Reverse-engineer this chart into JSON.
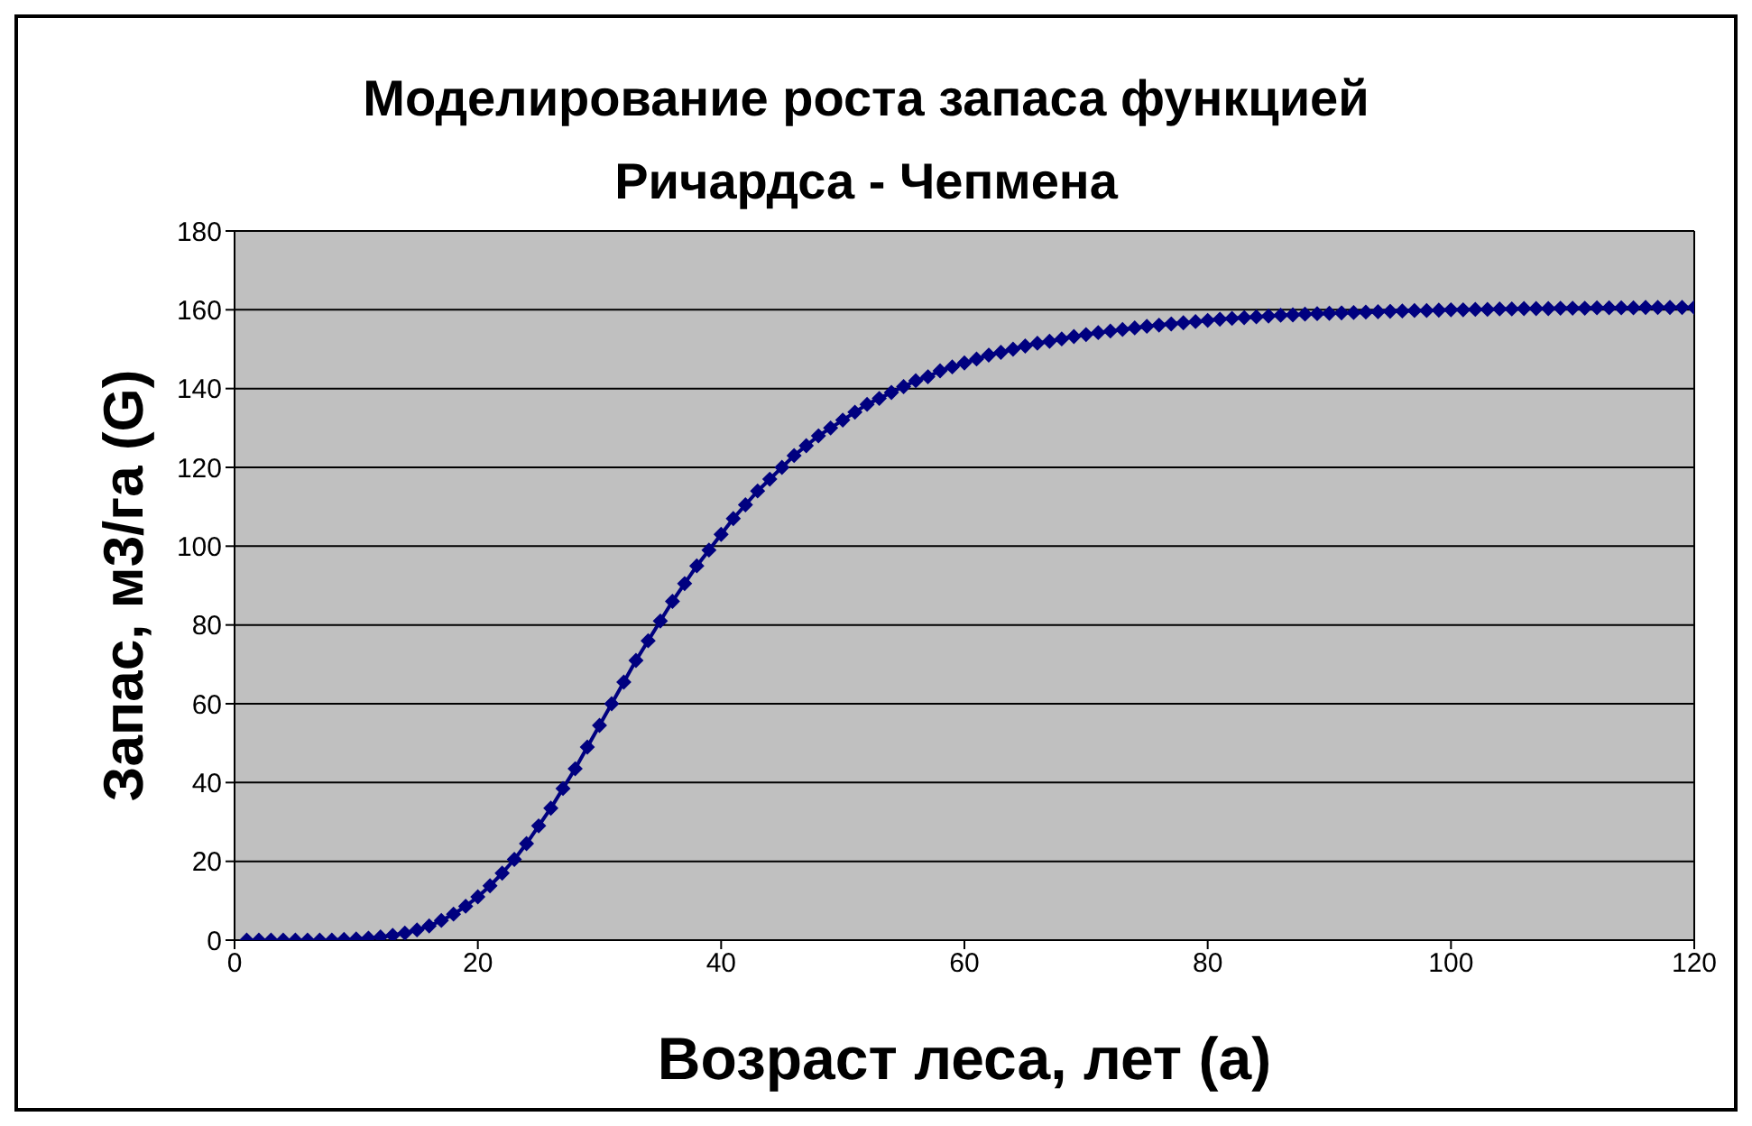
{
  "chart_data": {
    "type": "line",
    "title": "Моделирование роста запаса функцией Ричардса - Чепмена",
    "xlabel": "Возраст леса, лет (a)",
    "ylabel": "Запас,  м3/га (G)",
    "x": [
      1,
      2,
      3,
      4,
      5,
      6,
      7,
      8,
      9,
      10,
      11,
      12,
      13,
      14,
      15,
      16,
      17,
      18,
      19,
      20,
      21,
      22,
      23,
      24,
      25,
      26,
      27,
      28,
      29,
      30,
      31,
      32,
      33,
      34,
      35,
      36,
      37,
      38,
      39,
      40,
      41,
      42,
      43,
      44,
      45,
      46,
      47,
      48,
      49,
      50,
      51,
      52,
      53,
      54,
      55,
      56,
      57,
      58,
      59,
      60,
      61,
      62,
      63,
      64,
      65,
      66,
      67,
      68,
      69,
      70,
      71,
      72,
      73,
      74,
      75,
      76,
      77,
      78,
      79,
      80,
      81,
      82,
      83,
      84,
      85,
      86,
      87,
      88,
      89,
      90,
      91,
      92,
      93,
      94,
      95,
      96,
      97,
      98,
      99,
      100,
      101,
      102,
      103,
      104,
      105,
      106,
      107,
      108,
      109,
      110,
      111,
      112,
      113,
      114,
      115,
      116,
      117,
      118,
      119,
      120
    ],
    "series": [
      {
        "color": "#000080",
        "values": [
          0,
          0,
          0,
          0,
          0,
          0,
          0,
          0,
          0.2,
          0.3,
          0.5,
          0.8,
          1.2,
          1.8,
          2.6,
          3.6,
          5,
          6.6,
          8.6,
          11,
          13.8,
          17,
          20.5,
          24.5,
          29,
          33.5,
          38.5,
          43.5,
          49,
          54.5,
          60,
          65.5,
          71,
          76,
          81,
          86,
          90.5,
          95,
          99,
          103,
          107,
          110.5,
          114,
          117,
          120,
          123,
          125.5,
          128,
          130,
          132,
          134,
          136,
          137.5,
          139,
          140.5,
          142,
          143,
          144.5,
          145.5,
          146.5,
          147.5,
          148.5,
          149.2,
          150,
          150.8,
          151.5,
          152,
          152.6,
          153.2,
          153.7,
          154.2,
          154.6,
          155,
          155.4,
          155.8,
          156.1,
          156.4,
          156.7,
          157,
          157.3,
          157.6,
          157.8,
          158,
          158.2,
          158.4,
          158.6,
          158.7,
          158.9,
          159,
          159.1,
          159.2,
          159.3,
          159.4,
          159.5,
          159.6,
          159.7,
          159.8,
          159.8,
          159.9,
          160,
          160,
          160.1,
          160.1,
          160.2,
          160.2,
          160.3,
          160.3,
          160.3,
          160.4,
          160.4,
          160.4,
          160.5,
          160.5,
          160.5,
          160.5,
          160.6,
          160.6,
          160.6,
          160.6,
          160.6
        ]
      }
    ],
    "xlim": [
      0,
      120
    ],
    "xticks": [
      0,
      20,
      40,
      60,
      80,
      100,
      120
    ],
    "ylim": [
      0,
      180
    ],
    "yticks": [
      0,
      20,
      40,
      60,
      80,
      100,
      120,
      140,
      160,
      180
    ],
    "grid": "y",
    "marker": "diamond",
    "line_style": "solid"
  }
}
